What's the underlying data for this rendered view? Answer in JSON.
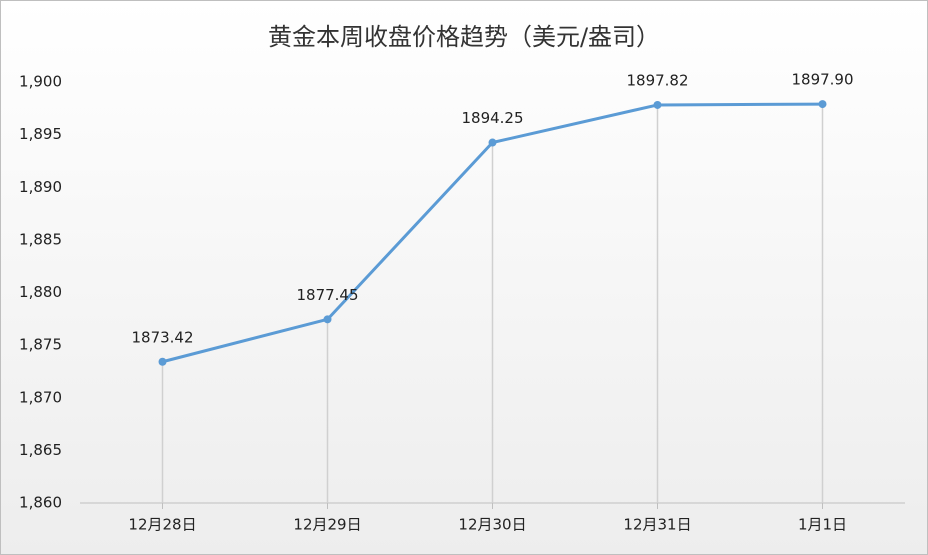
{
  "chart_data": {
    "type": "line",
    "title": "黄金本周收盘价格趋势（美元/盎司）",
    "categories": [
      "12月28日",
      "12月29日",
      "12月30日",
      "12月31日",
      "1月1日"
    ],
    "values": [
      1873.42,
      1877.45,
      1894.25,
      1897.82,
      1897.9
    ],
    "value_labels": [
      "1873.42",
      "1877.45",
      "1894.25",
      "1897.82",
      "1897.90"
    ],
    "color": "#5b9bd5",
    "ylim": [
      1860,
      1900
    ],
    "yticks": [
      {
        "value": 1860,
        "label": "1,860"
      },
      {
        "value": 1865,
        "label": "1,865"
      },
      {
        "value": 1870,
        "label": "1,870"
      },
      {
        "value": 1875,
        "label": "1,875"
      },
      {
        "value": 1880,
        "label": "1,880"
      },
      {
        "value": 1885,
        "label": "1,885"
      },
      {
        "value": 1890,
        "label": "1,890"
      },
      {
        "value": 1895,
        "label": "1,895"
      },
      {
        "value": 1900,
        "label": "1,900"
      }
    ],
    "drop_lines": true
  }
}
